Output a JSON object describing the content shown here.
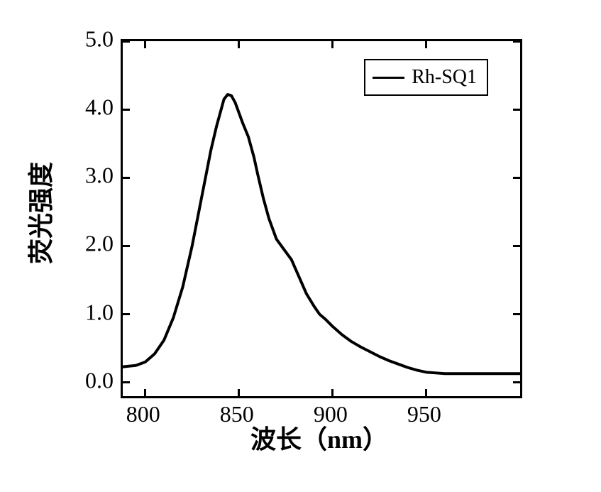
{
  "chart": {
    "type": "line",
    "x_label": "波长（nm）",
    "y_label": "荧光强度",
    "title_fontsize": 36,
    "label_fontsize": 32,
    "background_color": "#ffffff",
    "border_color": "#000000",
    "border_width": 3,
    "line_color": "#000000",
    "line_width": 3,
    "xlim": [
      788,
      1000
    ],
    "ylim": [
      -0.2,
      5.0
    ],
    "x_ticks": [
      800,
      850,
      900,
      950
    ],
    "y_ticks": [
      0.0,
      1.0,
      2.0,
      3.0,
      4.0,
      5.0
    ],
    "y_tick_labels": [
      "0.0",
      "1.0",
      "2.0",
      "3.0",
      "4.0",
      "5.0"
    ],
    "x_tick_labels": [
      "800",
      "850",
      "900",
      "950"
    ],
    "legend_label": "Rh-SQ1",
    "legend_position": "top-right",
    "legend_fontsize": 28,
    "data": {
      "x": [
        788,
        795,
        800,
        805,
        810,
        815,
        820,
        825,
        830,
        835,
        838,
        840,
        842,
        844,
        846,
        848,
        850,
        852,
        855,
        858,
        860,
        863,
        866,
        870,
        874,
        878,
        882,
        886,
        890,
        893,
        896,
        900,
        905,
        910,
        915,
        920,
        925,
        930,
        935,
        940,
        945,
        950,
        955,
        960,
        970,
        980,
        990,
        1000
      ],
      "y": [
        0.23,
        0.25,
        0.3,
        0.42,
        0.62,
        0.95,
        1.4,
        2.0,
        2.7,
        3.4,
        3.75,
        3.95,
        4.15,
        4.22,
        4.2,
        4.1,
        3.95,
        3.8,
        3.6,
        3.3,
        3.05,
        2.7,
        2.4,
        2.1,
        1.95,
        1.8,
        1.55,
        1.3,
        1.12,
        1.0,
        0.93,
        0.82,
        0.7,
        0.6,
        0.52,
        0.45,
        0.38,
        0.32,
        0.27,
        0.22,
        0.18,
        0.15,
        0.14,
        0.13,
        0.13,
        0.13,
        0.13,
        0.13
      ]
    }
  }
}
